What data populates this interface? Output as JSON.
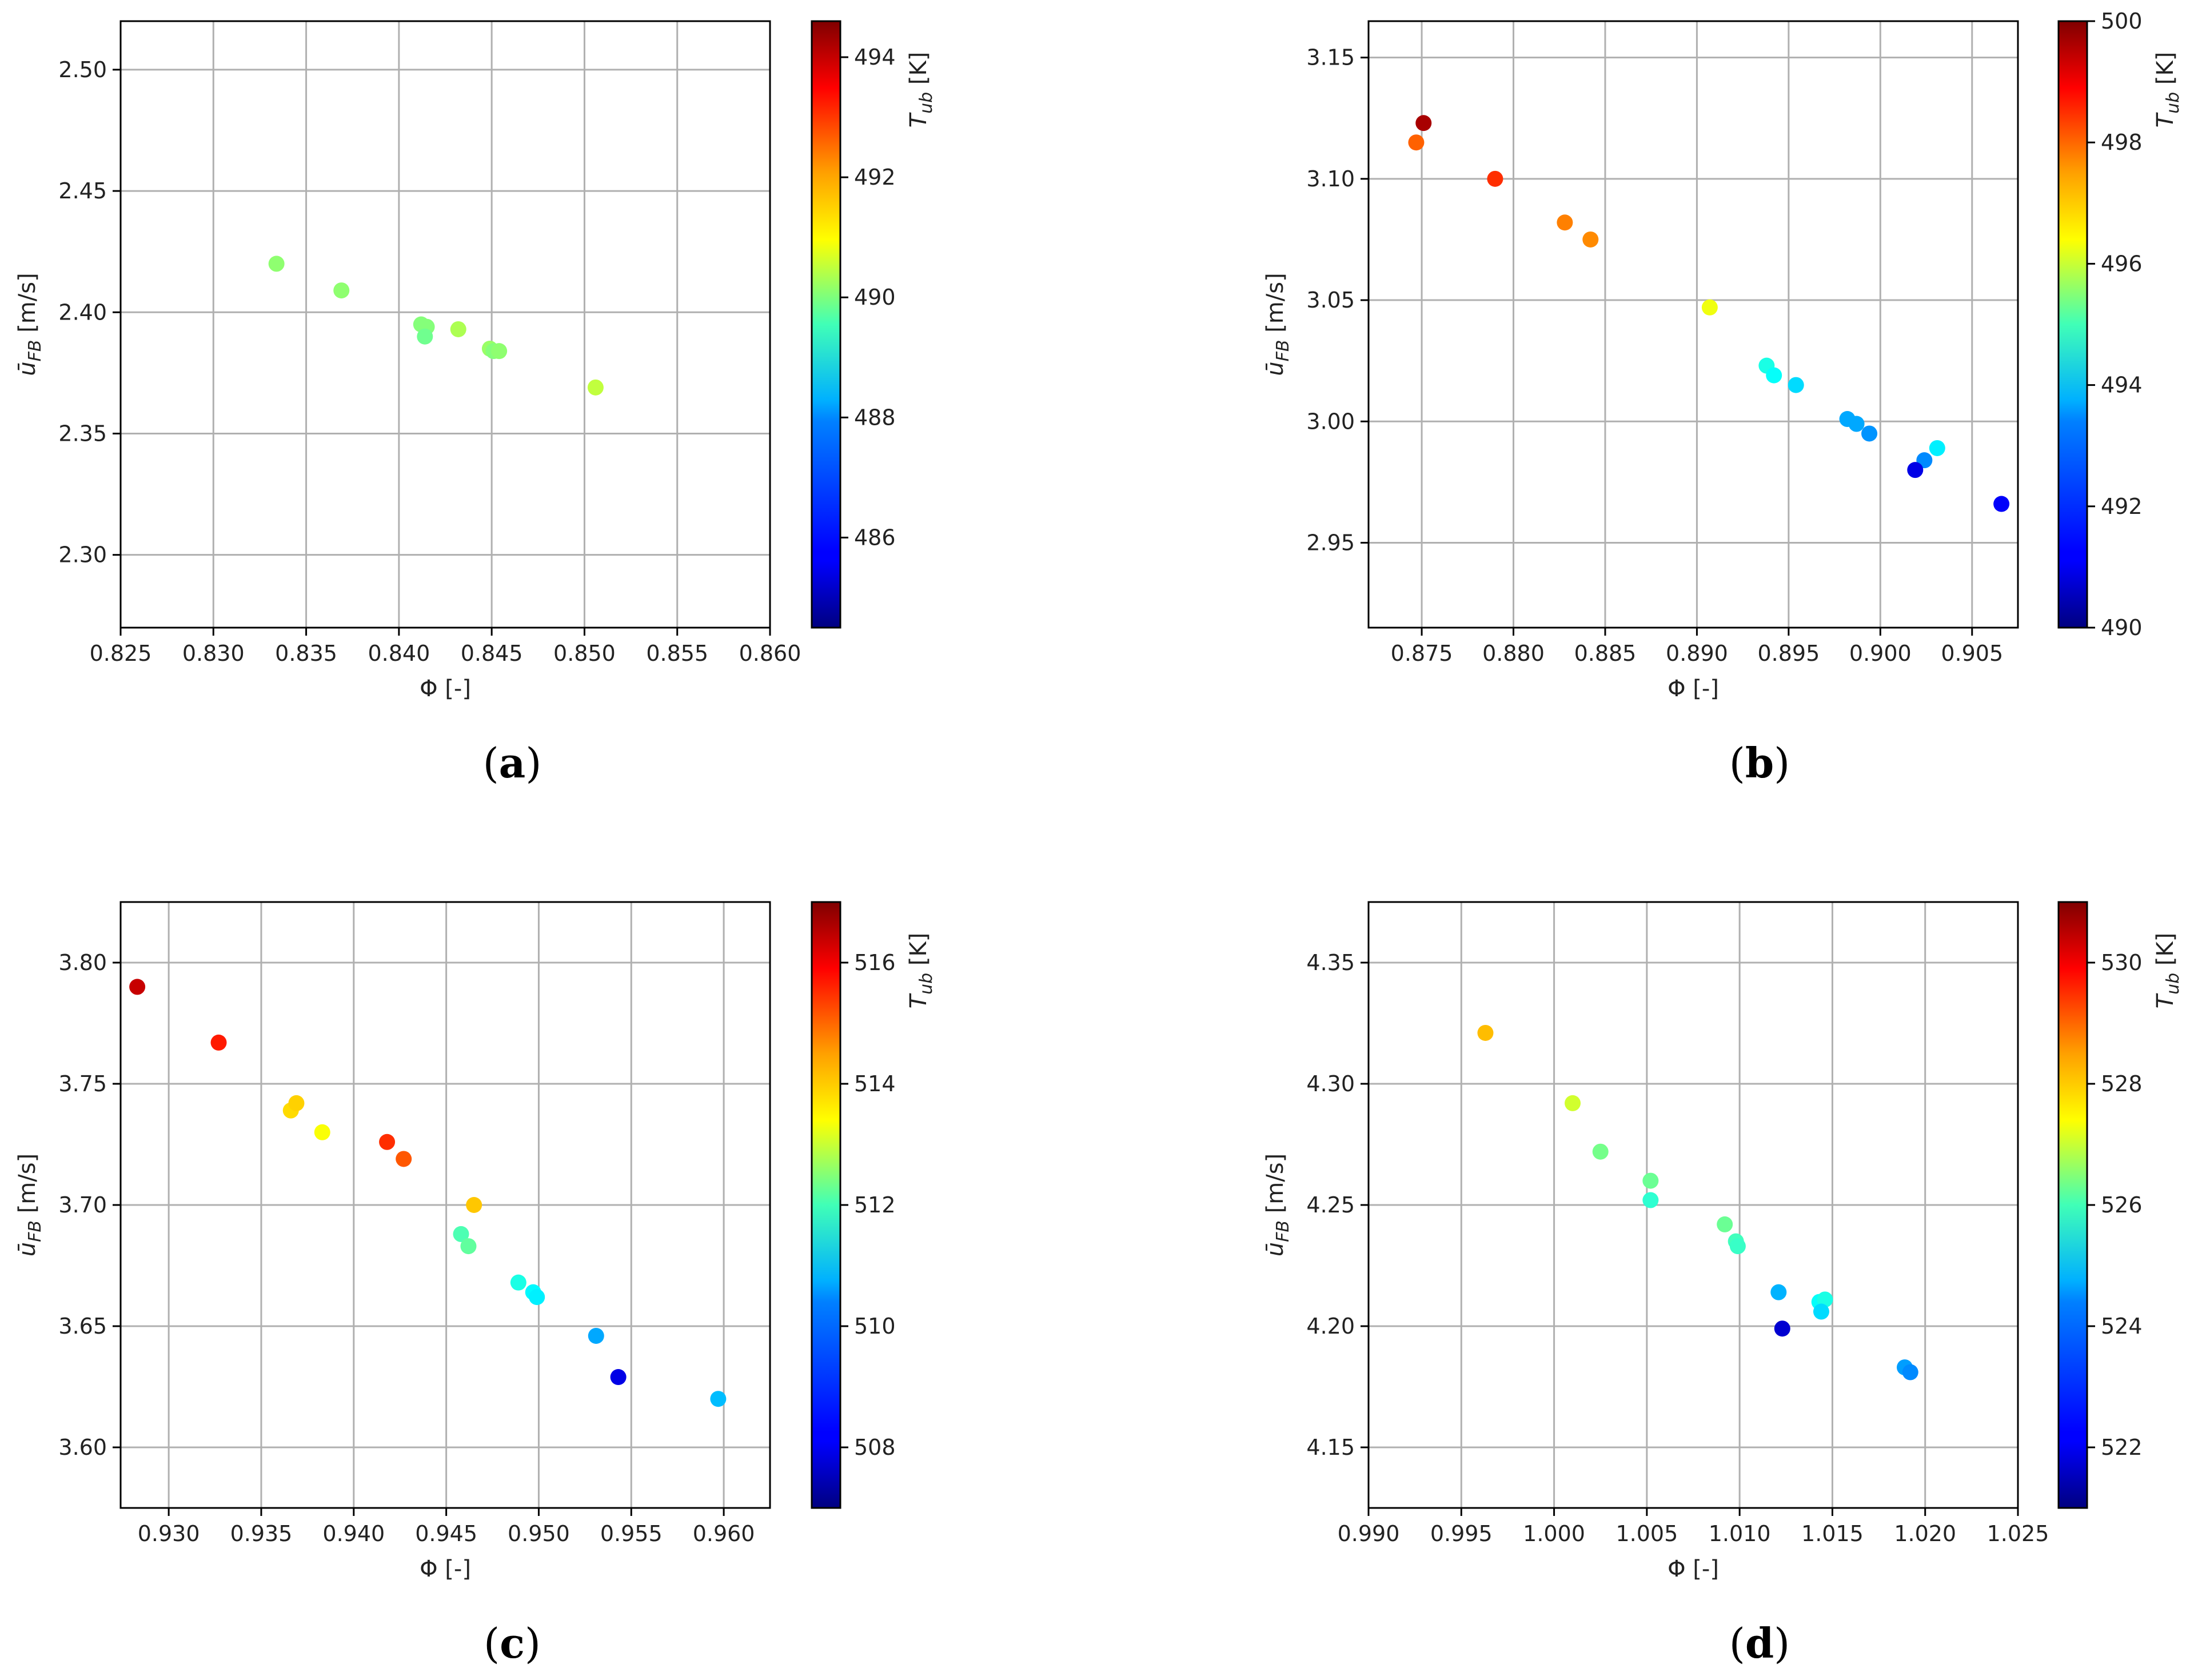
{
  "figure": {
    "panels": [
      {
        "label_open": "(",
        "label_letter": "a",
        "label_close": ")"
      },
      {
        "label_open": "(",
        "label_letter": "b",
        "label_close": ")"
      },
      {
        "label_open": "(",
        "label_letter": "c",
        "label_close": ")"
      },
      {
        "label_open": "(",
        "label_letter": "d",
        "label_close": ")"
      }
    ]
  },
  "chart_data": [
    {
      "type": "scatter",
      "xlabel": "Φ [-]",
      "ylabel": "ū_FB [m/s]",
      "colorbar_label": "T_ub [K]",
      "colormap": "jet",
      "grid": true,
      "xlim": [
        0.825,
        0.86
      ],
      "ylim": [
        2.27,
        2.52
      ],
      "clim": [
        484.5,
        494.6
      ],
      "xticks": [
        0.825,
        0.83,
        0.835,
        0.84,
        0.845,
        0.85,
        0.855,
        0.86
      ],
      "yticks": [
        2.3,
        2.35,
        2.4,
        2.45,
        2.5
      ],
      "cticks": [
        486,
        488,
        490,
        492,
        494
      ],
      "x": [
        0.8334,
        0.8369,
        0.8412,
        0.8415,
        0.8414,
        0.8432,
        0.8449,
        0.8451,
        0.8454,
        0.8506
      ],
      "y": [
        2.42,
        2.409,
        2.395,
        2.394,
        2.39,
        2.393,
        2.385,
        2.384,
        2.384,
        2.369
      ],
      "c": [
        489.7,
        489.7,
        489.6,
        489.6,
        489.4,
        490.0,
        489.8,
        489.6,
        489.7,
        490.2
      ]
    },
    {
      "type": "scatter",
      "xlabel": "Φ [-]",
      "ylabel": "ū_FB [m/s]",
      "colorbar_label": "T_ub [K]",
      "colormap": "jet",
      "grid": true,
      "xlim": [
        0.8721,
        0.9075
      ],
      "ylim": [
        2.915,
        3.165
      ],
      "clim": [
        490,
        500
      ],
      "xticks": [
        0.875,
        0.88,
        0.885,
        0.89,
        0.895,
        0.9,
        0.905
      ],
      "yticks": [
        2.95,
        3.0,
        3.05,
        3.1,
        3.15
      ],
      "cticks": [
        490,
        492,
        494,
        496,
        498,
        500
      ],
      "x": [
        0.8751,
        0.8747,
        0.879,
        0.8828,
        0.8842,
        0.8907,
        0.8938,
        0.8942,
        0.8954,
        0.8982,
        0.8987,
        0.8994,
        0.9031,
        0.9024,
        0.9019,
        0.9066
      ],
      "y": [
        3.123,
        3.115,
        3.1,
        3.082,
        3.075,
        3.047,
        3.023,
        3.019,
        3.015,
        3.001,
        2.999,
        2.995,
        2.989,
        2.984,
        2.98,
        2.966
      ],
      "c": [
        499.6,
        497.8,
        498.3,
        497.5,
        497.4,
        496.1,
        494.0,
        493.8,
        493.4,
        492.9,
        492.9,
        492.7,
        493.6,
        492.6,
        491.0,
        491.2
      ]
    },
    {
      "type": "scatter",
      "xlabel": "Φ [-]",
      "ylabel": "ū_FB [m/s]",
      "colorbar_label": "T_ub [K]",
      "colormap": "jet",
      "grid": true,
      "xlim": [
        0.9274,
        0.9625
      ],
      "ylim": [
        3.575,
        3.825
      ],
      "clim": [
        507,
        517
      ],
      "xticks": [
        0.93,
        0.935,
        0.94,
        0.945,
        0.95,
        0.955,
        0.96
      ],
      "yticks": [
        3.6,
        3.65,
        3.7,
        3.75,
        3.8
      ],
      "cticks": [
        508,
        510,
        512,
        514,
        516
      ],
      "x": [
        0.9283,
        0.9327,
        0.9366,
        0.9369,
        0.9383,
        0.9418,
        0.9427,
        0.9465,
        0.9458,
        0.9462,
        0.9489,
        0.9497,
        0.9499,
        0.9531,
        0.9543,
        0.9597
      ],
      "y": [
        3.79,
        3.767,
        3.739,
        3.742,
        3.73,
        3.726,
        3.719,
        3.7,
        3.688,
        3.683,
        3.668,
        3.664,
        3.662,
        3.646,
        3.629,
        3.62
      ],
      "c": [
        516.3,
        515.5,
        513.6,
        513.7,
        513.2,
        515.3,
        514.9,
        513.8,
        511.5,
        511.7,
        511.0,
        510.7,
        510.6,
        509.9,
        508.0,
        510.1
      ]
    },
    {
      "type": "scatter",
      "xlabel": "Φ [-]",
      "ylabel": "ū_FB [m/s]",
      "colorbar_label": "T_ub [K]",
      "colormap": "jet",
      "grid": true,
      "xlim": [
        0.99,
        1.025
      ],
      "ylim": [
        4.125,
        4.375
      ],
      "clim": [
        521,
        531
      ],
      "xticks": [
        0.99,
        0.995,
        1.0,
        1.005,
        1.01,
        1.015,
        1.02,
        1.025
      ],
      "yticks": [
        4.15,
        4.2,
        4.25,
        4.3,
        4.35
      ],
      "cticks": [
        522,
        524,
        526,
        528,
        530
      ],
      "x": [
        0.9963,
        1.001,
        1.0025,
        1.0052,
        1.0052,
        1.0092,
        1.0098,
        1.0099,
        1.0121,
        1.0143,
        1.0146,
        1.0144,
        1.0123,
        1.0189,
        1.0192
      ],
      "y": [
        4.321,
        4.292,
        4.272,
        4.26,
        4.252,
        4.242,
        4.235,
        4.233,
        4.214,
        4.21,
        4.211,
        4.206,
        4.199,
        4.183,
        4.181
      ],
      "c": [
        527.9,
        526.8,
        525.9,
        525.8,
        525.2,
        525.8,
        525.4,
        525.3,
        524.0,
        524.8,
        525.0,
        524.4,
        521.8,
        523.8,
        523.6
      ]
    }
  ]
}
